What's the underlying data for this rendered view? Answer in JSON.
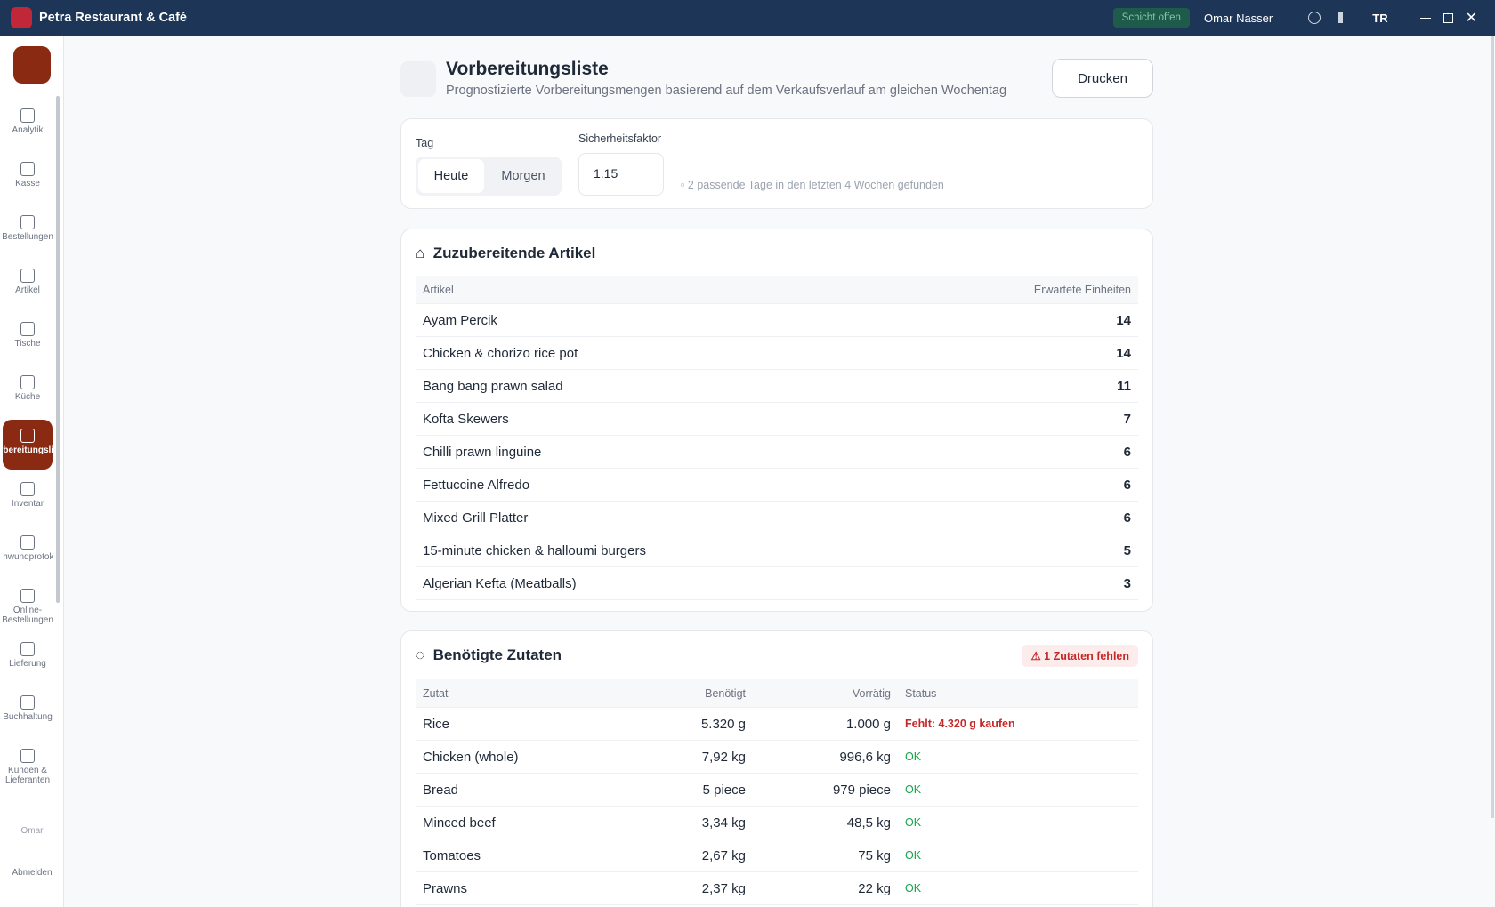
{
  "app": {
    "title": "Petra Restaurant & Café",
    "shift": "Schicht offen",
    "user": "Omar Nasser",
    "lang": "TR"
  },
  "sidebar": {
    "items": [
      "Analytik",
      "Kasse",
      "Bestellungen",
      "Artikel",
      "Tische",
      "Küche",
      "Vorbereitungsliste",
      "Inventar",
      "Schwundprotokoll",
      "Online-Bestellungen",
      "Lieferung",
      "Buchhaltung",
      "Kunden & Lieferanten"
    ],
    "user": "Omar",
    "logout": "Abmelden"
  },
  "header": {
    "title": "Vorbereitungsliste",
    "subtitle": "Prognostizierte Vorbereitungsmengen basierend auf dem Verkaufsverlauf am gleichen Wochentag",
    "print": "Drucken"
  },
  "filters": {
    "day_label": "Tag",
    "days": [
      "Heute",
      "Morgen"
    ],
    "factor_label": "Sicherheitsfaktor",
    "factor": "1.15",
    "info": "2 passende Tage in den letzten 4 Wochen gefunden"
  },
  "items": {
    "title": "Zuzubereitende Artikel",
    "columns": [
      "Artikel",
      "Erwartete Einheiten"
    ],
    "rows": [
      [
        "Ayam Percik",
        14
      ],
      [
        "Chicken & chorizo rice pot",
        14
      ],
      [
        "Bang bang prawn salad",
        11
      ],
      [
        "Kofta Skewers",
        7
      ],
      [
        "Chilli prawn linguine",
        6
      ],
      [
        "Fettuccine Alfredo",
        6
      ],
      [
        "Mixed Grill Platter",
        6
      ],
      [
        "15-minute chicken & halloumi burgers",
        5
      ],
      [
        "Algerian Kefta (Meatballs)",
        3
      ]
    ]
  },
  "ingredients": {
    "title": "Benötigte Zutaten",
    "alert": "1 Zutaten fehlen",
    "columns": [
      "Zutat",
      "Benötigt",
      "Vorrätig",
      "Status"
    ],
    "rows": [
      [
        "Rice",
        "5.320 g",
        "1.000 g",
        "Fehlt: 4.320 g kaufen"
      ],
      [
        "Chicken (whole)",
        "7,92 kg",
        "996,6 kg",
        "OK"
      ],
      [
        "Bread",
        "5 piece",
        "979 piece",
        "OK"
      ],
      [
        "Minced beef",
        "3,34 kg",
        "48,5 kg",
        "OK"
      ],
      [
        "Tomatoes",
        "2,67 kg",
        "75 kg",
        "OK"
      ],
      [
        "Prawns",
        "2,37 kg",
        "22 kg",
        "OK"
      ]
    ]
  }
}
